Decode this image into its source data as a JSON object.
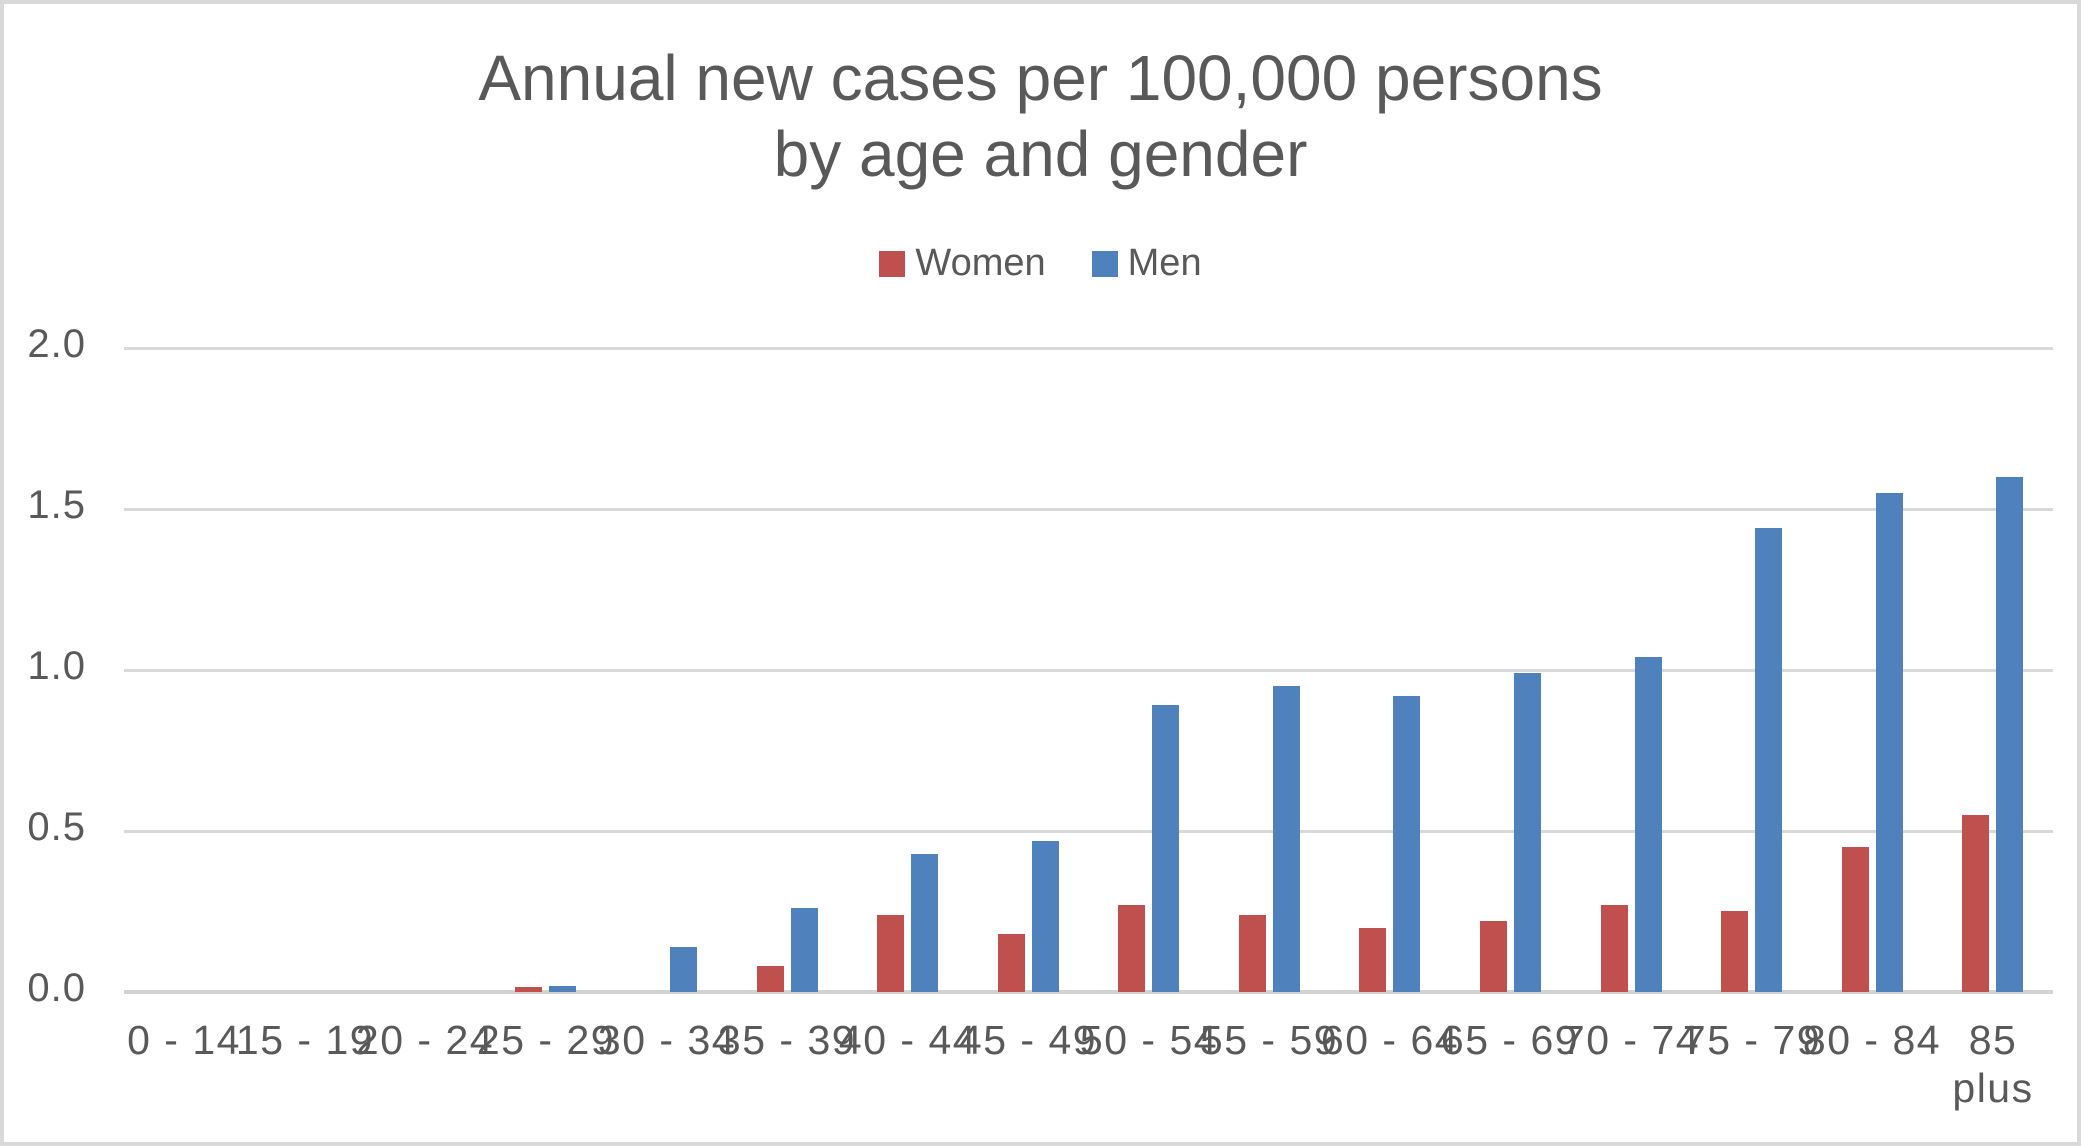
{
  "title": {
    "line1": "Annual new cases per 100,000 persons",
    "line2": "by age and gender",
    "color": "#595959"
  },
  "legend": [
    {
      "label": "Women",
      "color": "#C0504D"
    },
    {
      "label": "Men",
      "color": "#4F81BD"
    }
  ],
  "colors": {
    "text": "#595959",
    "gridline": "#D9D9D9",
    "baseline": "#D3D3D3",
    "women": "#C0504D",
    "men": "#4F81BD"
  },
  "chart_data": {
    "type": "bar",
    "title": "Annual new cases per 100,000 persons by age and gender",
    "categories": [
      "0 - 14",
      "15 - 19",
      "20 - 24",
      "25 - 29",
      "30 - 34",
      "35 - 39",
      "40 - 44",
      "45 - 49",
      "50 - 54",
      "55 - 59",
      "60 - 64",
      "65 - 69",
      "70 - 74",
      "75 - 79",
      "80 - 84",
      "85 plus"
    ],
    "xtick_labels": [
      "0 - 14",
      "15 - 19",
      "20 - 24",
      "25 - 29",
      "30 - 34",
      "35 - 39",
      "40 - 44",
      "45 - 49",
      "50 - 54",
      "55 - 59",
      "60 - 64",
      "65 - 69",
      "70 - 74",
      "75 - 79",
      "80 - 84",
      "85\nplus"
    ],
    "series": [
      {
        "name": "Women",
        "color": "#C0504D",
        "values": [
          0,
          0,
          0,
          0.015,
          0,
          0.08,
          0.24,
          0.18,
          0.27,
          0.24,
          0.2,
          0.22,
          0.27,
          0.25,
          0.45,
          0.55
        ]
      },
      {
        "name": "Men",
        "color": "#4F81BD",
        "values": [
          0,
          0,
          0,
          0.02,
          0.14,
          0.26,
          0.43,
          0.47,
          0.89,
          0.95,
          0.92,
          0.99,
          1.04,
          1.44,
          1.55,
          1.6
        ]
      }
    ],
    "xlabel": "",
    "ylabel": "",
    "ylim": [
      0,
      2.0
    ],
    "yticks": [
      0.0,
      0.5,
      1.0,
      1.5,
      2.0
    ],
    "ytick_labels": [
      "0.0",
      "0.5",
      "1.0",
      "1.5",
      "2.0"
    ],
    "grid": true,
    "legend_position": "top"
  }
}
